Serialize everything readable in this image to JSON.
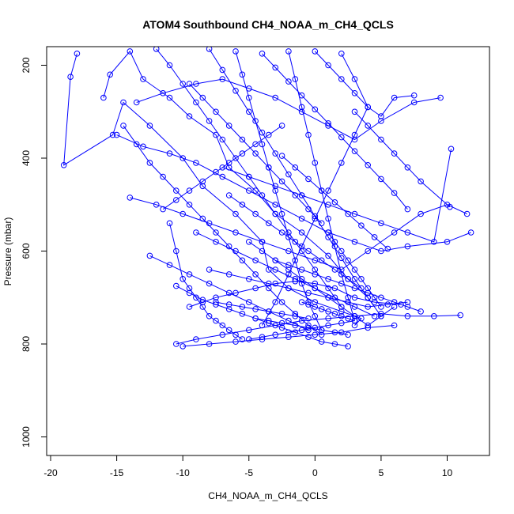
{
  "chart_data": {
    "type": "line",
    "title": "ATOM4 Southbound CH4_NOAA_m_CH4_QCLS",
    "xlabel": "CH4_NOAA_m_CH4_QCLS",
    "ylabel": "Pressure (mbar)",
    "xlim": [
      -20.3,
      13.2
    ],
    "ylim": [
      1040,
      160
    ],
    "y_inverted": true,
    "x_ticks": [
      -20,
      -15,
      -10,
      -5,
      0,
      5,
      10
    ],
    "x_tick_labels": [
      "-20",
      "-15",
      "-10",
      "-5",
      "0",
      "5",
      "10"
    ],
    "y_ticks": [
      200,
      400,
      600,
      800,
      1000
    ],
    "y_tick_labels": [
      "200",
      "400",
      "600",
      "800",
      "1000"
    ],
    "grid": false,
    "series_color": "#0000ff",
    "marker": "open-circle",
    "series": [
      {
        "x": [
          -18,
          -18.5,
          -19,
          -15.3,
          -14.5,
          -12.5,
          -10,
          -8.5,
          -6,
          -4,
          -3.5,
          -2,
          0,
          2,
          3.5,
          3
        ],
        "y": [
          175,
          225,
          415,
          350,
          280,
          330,
          400,
          460,
          520,
          580,
          640,
          680,
          710,
          730,
          745,
          760
        ]
      },
      {
        "x": [
          -16,
          -15.5,
          -14,
          -13,
          -11,
          -9.5,
          -7.5,
          -6.5,
          -4.5,
          -3,
          -1,
          1,
          2.5,
          4
        ],
        "y": [
          270,
          220,
          170,
          230,
          270,
          310,
          350,
          420,
          470,
          520,
          560,
          610,
          660,
          700
        ]
      },
      {
        "x": [
          -14.5,
          -13.5,
          -12.5,
          -11.5,
          -10.5,
          -9.5,
          -8.5,
          -7.5,
          -6.5,
          -5.5,
          -4.5,
          -3.5,
          -2.5,
          -1.5,
          -0.5,
          0.5
        ],
        "y": [
          330,
          370,
          410,
          440,
          470,
          500,
          530,
          560,
          590,
          620,
          650,
          680,
          710,
          735,
          760,
          780
        ]
      },
      {
        "x": [
          -14,
          -12,
          -10,
          -8,
          -6,
          -4,
          -2,
          0,
          2,
          4,
          6,
          8,
          10,
          11.5
        ],
        "y": [
          485,
          500,
          520,
          540,
          560,
          580,
          600,
          620,
          640,
          600,
          560,
          520,
          500,
          520
        ]
      },
      {
        "x": [
          -13.5,
          -11.5,
          -9,
          -7,
          -5,
          -3,
          -1,
          1,
          3,
          5,
          7.5,
          9.5
        ],
        "y": [
          280,
          260,
          240,
          230,
          250,
          270,
          300,
          330,
          360,
          320,
          280,
          270
        ]
      },
      {
        "x": [
          -11,
          -10.5,
          -10,
          -9.5,
          -9,
          -8.5,
          -8,
          -7.5,
          -7,
          -6.5,
          -6,
          -5.5
        ],
        "y": [
          540,
          600,
          660,
          680,
          700,
          720,
          740,
          750,
          760,
          770,
          780,
          790
        ]
      },
      {
        "x": [
          -10.5,
          -9,
          -7,
          -5,
          -3,
          -1,
          1,
          3,
          5,
          7,
          9,
          11
        ],
        "y": [
          800,
          790,
          780,
          770,
          760,
          750,
          745,
          740,
          735,
          740,
          740,
          738
        ]
      },
      {
        "x": [
          -10,
          -8,
          -6,
          -4,
          -2,
          0,
          2,
          4,
          6
        ],
        "y": [
          805,
          800,
          795,
          790,
          785,
          780,
          775,
          765,
          760
        ]
      },
      {
        "x": [
          -9.5,
          -8.5,
          -7.5,
          -6,
          -4.5,
          -3,
          -1.5,
          0,
          1.5,
          3,
          4.5,
          6.5
        ],
        "y": [
          720,
          710,
          700,
          690,
          680,
          670,
          665,
          670,
          680,
          700,
          710,
          715
        ]
      },
      {
        "x": [
          -12,
          -11,
          -10,
          -9,
          -8,
          -7,
          -6,
          -5,
          -4,
          -3,
          -2,
          -1,
          0,
          1,
          2
        ],
        "y": [
          165,
          200,
          240,
          280,
          320,
          360,
          400,
          440,
          480,
          520,
          560,
          600,
          640,
          680,
          720
        ]
      },
      {
        "x": [
          -8,
          -7,
          -6,
          -5,
          -4,
          -3,
          -2,
          -1,
          0,
          1,
          2,
          3,
          4,
          5
        ],
        "y": [
          165,
          210,
          255,
          300,
          345,
          390,
          435,
          480,
          525,
          570,
          615,
          660,
          700,
          740
        ]
      },
      {
        "x": [
          -6,
          -5.5,
          -5,
          -4.5,
          -4,
          -3.5,
          -3,
          -2.5,
          -2,
          -1.5,
          -1,
          -0.5,
          0,
          0.5
        ],
        "y": [
          170,
          220,
          270,
          320,
          370,
          420,
          470,
          520,
          570,
          620,
          670,
          710,
          740,
          770
        ]
      },
      {
        "x": [
          -4,
          -3,
          -2,
          -1,
          0,
          1,
          2,
          3,
          4,
          5,
          6,
          7
        ],
        "y": [
          175,
          205,
          235,
          265,
          295,
          325,
          355,
          385,
          415,
          445,
          475,
          510
        ]
      },
      {
        "x": [
          -2,
          -1.5,
          -1,
          -0.5,
          0,
          0.5,
          1,
          1.5,
          2,
          2.5,
          3
        ],
        "y": [
          170,
          230,
          290,
          350,
          410,
          470,
          530,
          590,
          650,
          700,
          750
        ]
      },
      {
        "x": [
          0,
          1,
          2,
          3,
          4,
          5,
          6,
          7.5
        ],
        "y": [
          170,
          200,
          230,
          260,
          290,
          310,
          270,
          265
        ]
      },
      {
        "x": [
          2,
          3,
          4,
          3,
          2,
          1,
          0,
          -1,
          -2,
          -3,
          -4
        ],
        "y": [
          175,
          230,
          290,
          350,
          410,
          470,
          530,
          590,
          650,
          710,
          760
        ]
      },
      {
        "x": [
          -15,
          -13,
          -11,
          -9,
          -7,
          -5,
          -3,
          -1,
          1,
          3,
          5,
          7,
          10,
          11.8
        ],
        "y": [
          350,
          375,
          390,
          410,
          440,
          470,
          500,
          530,
          560,
          580,
          600,
          590,
          580,
          560
        ]
      },
      {
        "x": [
          -10.5,
          -9.5,
          -8.5,
          -7.5,
          -6.5,
          -5.5,
          -4.5,
          -3.5,
          -2.5,
          -1.5,
          -0.5,
          0.5,
          1.5,
          2.5
        ],
        "y": [
          675,
          690,
          705,
          715,
          725,
          735,
          745,
          755,
          765,
          775,
          785,
          795,
          800,
          805
        ]
      },
      {
        "x": [
          -9,
          -7.5,
          -6,
          -4.5,
          -3,
          -1.5,
          0,
          1.5,
          3,
          4.5
        ],
        "y": [
          560,
          580,
          600,
          620,
          640,
          660,
          680,
          700,
          720,
          740
        ]
      },
      {
        "x": [
          -8,
          -6.5,
          -5,
          -3.5,
          -2,
          -0.5,
          1,
          2.5,
          4,
          5.5,
          7
        ],
        "y": [
          640,
          650,
          660,
          670,
          680,
          690,
          700,
          710,
          720,
          715,
          710
        ]
      },
      {
        "x": [
          -7,
          -5,
          -3,
          -1,
          1,
          3,
          5,
          7,
          9,
          10.3
        ],
        "y": [
          420,
          440,
          460,
          480,
          500,
          520,
          540,
          560,
          580,
          380
        ]
      },
      {
        "x": [
          -5,
          -4,
          -3,
          -2,
          -1,
          0,
          1,
          2,
          3,
          4,
          5,
          6
        ],
        "y": [
          580,
          600,
          620,
          640,
          660,
          680,
          700,
          720,
          740,
          760,
          740,
          720
        ]
      },
      {
        "x": [
          -3,
          -2,
          -1,
          0,
          1,
          2,
          3,
          4,
          5,
          6,
          7,
          8
        ],
        "y": [
          620,
          630,
          640,
          650,
          660,
          670,
          680,
          690,
          700,
          710,
          720,
          730
        ]
      },
      {
        "x": [
          -11.5,
          -10.5,
          -9.5,
          -8.5,
          -7.5,
          -6.5,
          -5.5,
          -4.5,
          -3.5,
          -2.5
        ],
        "y": [
          510,
          490,
          470,
          450,
          430,
          410,
          390,
          370,
          350,
          330
        ]
      },
      {
        "x": [
          -6.5,
          -5.5,
          -4.5,
          -3.5,
          -2.5,
          -1.5,
          -0.5,
          0.5,
          1.5,
          2.5,
          3.5
        ],
        "y": [
          480,
          500,
          520,
          540,
          560,
          580,
          600,
          620,
          640,
          660,
          680
        ]
      },
      {
        "x": [
          -2.5,
          -1.5,
          -0.5,
          0.5,
          1.5,
          2.5,
          3.5,
          4.5,
          5.5
        ],
        "y": [
          395,
          420,
          445,
          470,
          495,
          520,
          545,
          570,
          595
        ]
      },
      {
        "x": [
          1,
          1.5,
          2,
          2.5,
          3,
          3.5,
          4,
          4.5,
          5
        ],
        "y": [
          560,
          580,
          600,
          620,
          640,
          660,
          680,
          700,
          720
        ]
      },
      {
        "x": [
          -12.5,
          -11,
          -9.5,
          -8,
          -6.5,
          -5,
          -3.5,
          -2,
          -0.5
        ],
        "y": [
          610,
          630,
          650,
          670,
          690,
          710,
          730,
          750,
          770
        ]
      },
      {
        "x": [
          -4.5,
          -3.5,
          -2.5,
          -1.5,
          -0.5,
          0.5,
          1.5,
          2.5
        ],
        "y": [
          745,
          750,
          755,
          760,
          765,
          770,
          775,
          780
        ]
      },
      {
        "x": [
          -9.5,
          -8.5,
          -7.5,
          -6.5,
          -5.5,
          -4.5,
          -3.5,
          -2.5,
          -1.5,
          -0.5,
          0.5
        ],
        "y": [
          240,
          270,
          300,
          330,
          360,
          390,
          420,
          450,
          480,
          510,
          540
        ]
      },
      {
        "x": [
          3,
          4,
          5,
          6,
          7,
          8,
          10.2
        ],
        "y": [
          300,
          330,
          360,
          390,
          420,
          450,
          505
        ]
      },
      {
        "x": [
          -1,
          -0.5,
          0,
          0.5,
          1,
          1.5,
          2,
          2.5,
          3
        ],
        "y": [
          710,
          715,
          720,
          725,
          730,
          735,
          740,
          745,
          750
        ]
      },
      {
        "x": [
          -7.5,
          -6.5,
          -5.5,
          -4.5,
          -3.5,
          -2.5,
          -1.5,
          -0.5
        ],
        "y": [
          710,
          715,
          720,
          725,
          730,
          735,
          740,
          745
        ]
      },
      {
        "x": [
          -5,
          -4,
          -3,
          -2,
          -1,
          0,
          1,
          2,
          3
        ],
        "y": [
          790,
          785,
          780,
          775,
          770,
          765,
          760,
          755,
          750
        ]
      }
    ]
  }
}
